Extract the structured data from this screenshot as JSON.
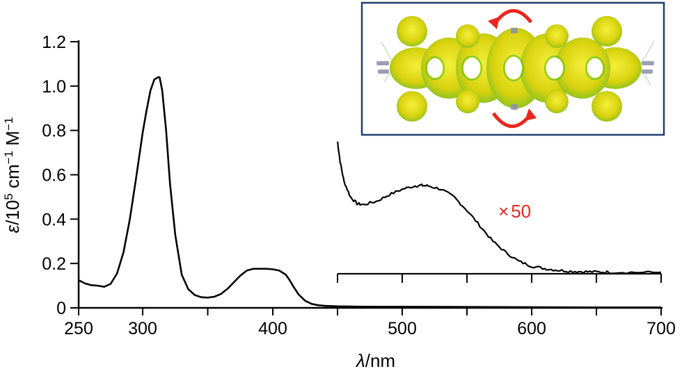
{
  "colors": {
    "axis": "#000000",
    "trace": "#000000",
    "inset_frame": "#1f3f6e",
    "highlight": "#e8281e",
    "molecule_fill": "#e6df12",
    "molecule_mesh": "#4fbf2e"
  },
  "axes": {
    "ylabel_italic": "ε",
    "ylabel_rest": "/10",
    "ylabel_sup1": "5",
    "ylabel_unit_a": " cm",
    "ylabel_sup2": "−1",
    "ylabel_unit_b": " M",
    "ylabel_sup3": "−1",
    "xlabel_italic": "λ",
    "xlabel_rest": "/nm"
  },
  "multiplier": {
    "symbol": "×",
    "value": "50"
  },
  "inset": {
    "icons": [
      "molecule-isosurface",
      "rotation-arrow-top",
      "rotation-arrow-bottom"
    ]
  },
  "chart_data": {
    "type": "line",
    "x_range": [
      250,
      700
    ],
    "y_range": [
      0,
      1.2
    ],
    "x_ticks": [
      "250",
      "300",
      "400",
      "500",
      "600",
      "700"
    ],
    "y_ticks": [
      "0",
      "0.2",
      "0.4",
      "0.6",
      "0.8",
      "1.0",
      "1.2"
    ],
    "main_series": {
      "x": [
        250,
        255,
        260,
        265,
        270,
        275,
        280,
        285,
        290,
        295,
        300,
        303,
        306,
        309,
        312,
        313,
        315,
        318,
        321,
        325,
        330,
        335,
        340,
        345,
        350,
        355,
        360,
        365,
        370,
        375,
        380,
        385,
        390,
        395,
        400,
        405,
        410,
        413,
        416,
        420,
        425,
        430,
        435,
        440,
        445,
        450,
        460,
        480,
        500,
        550,
        600,
        650,
        700
      ],
      "y": [
        0.125,
        0.11,
        0.102,
        0.1,
        0.095,
        0.108,
        0.155,
        0.25,
        0.4,
        0.59,
        0.79,
        0.89,
        0.98,
        1.03,
        1.04,
        1.04,
        0.98,
        0.8,
        0.56,
        0.33,
        0.15,
        0.085,
        0.058,
        0.048,
        0.046,
        0.05,
        0.062,
        0.085,
        0.115,
        0.145,
        0.168,
        0.176,
        0.176,
        0.176,
        0.174,
        0.168,
        0.15,
        0.125,
        0.095,
        0.06,
        0.032,
        0.018,
        0.012,
        0.009,
        0.008,
        0.007,
        0.006,
        0.005,
        0.005,
        0.004,
        0.003,
        0.002,
        0.002
      ]
    },
    "magnified_series": {
      "factor": 50,
      "baseline_value": 0.16,
      "x": [
        450,
        452,
        455,
        460,
        465,
        470,
        480,
        490,
        500,
        510,
        515,
        520,
        530,
        540,
        550,
        560,
        570,
        580,
        590,
        600,
        610,
        620,
        630,
        640,
        650,
        660,
        680,
        700
      ],
      "y": [
        0.75,
        0.66,
        0.57,
        0.5,
        0.47,
        0.465,
        0.48,
        0.51,
        0.535,
        0.55,
        0.552,
        0.55,
        0.535,
        0.5,
        0.44,
        0.37,
        0.3,
        0.25,
        0.21,
        0.188,
        0.177,
        0.17,
        0.165,
        0.163,
        0.162,
        0.161,
        0.16,
        0.16
      ]
    }
  }
}
